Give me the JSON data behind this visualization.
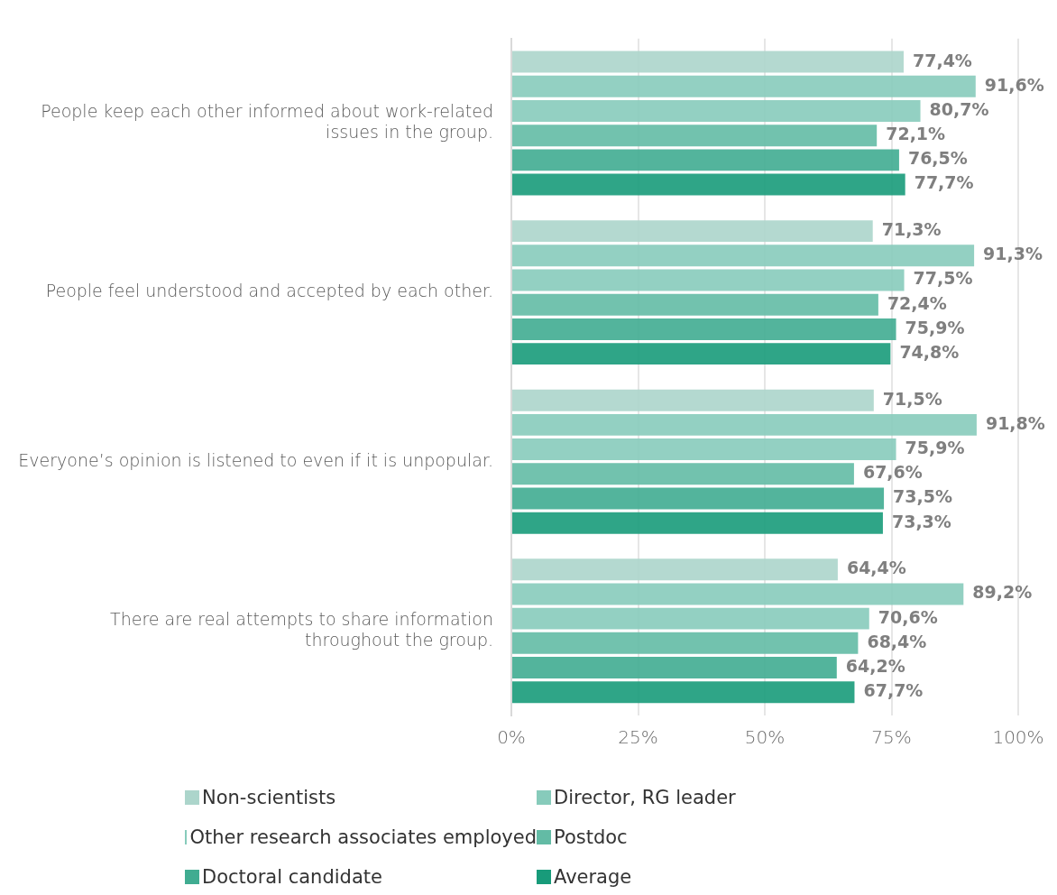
{
  "chart_data": {
    "type": "bar",
    "orientation": "horizontal",
    "categories": [
      "People keep each other informed about work-related issues in the group.",
      "People feel understood and accepted by each other.",
      "Everyone’s opinion is listened to even if it is unpopular.",
      "There are real attempts to share information throughout the group."
    ],
    "series": [
      {
        "name": "Non-scientists",
        "color": "#acd5cb",
        "values": [
          77.4,
          71.3,
          71.5,
          64.4
        ],
        "value_labels": [
          "77,4%",
          "71,3%",
          "71,5%",
          "64,4%"
        ]
      },
      {
        "name": "Director, RG leader",
        "color": "#87cbbb",
        "values": [
          91.6,
          91.3,
          91.8,
          89.2
        ],
        "value_labels": [
          "91,6%",
          "91,3%",
          "91,8%",
          "89,2%"
        ]
      },
      {
        "name": "Other research associates employed",
        "color": "#87cbbb",
        "values": [
          80.7,
          77.5,
          75.9,
          70.6
        ],
        "value_labels": [
          "80,7%",
          "77,5%",
          "75,9%",
          "70,6%"
        ]
      },
      {
        "name": "Postdoc",
        "color": "#63bba5",
        "values": [
          72.1,
          72.4,
          67.6,
          68.4
        ],
        "value_labels": [
          "72,1%",
          "72,4%",
          "67,6%",
          "68,4%"
        ]
      },
      {
        "name": "Doctoral candidate",
        "color": "#40ac91",
        "values": [
          76.5,
          75.9,
          73.5,
          64.2
        ],
        "value_labels": [
          "76,5%",
          "75,9%",
          "73,5%",
          "64,2%"
        ]
      },
      {
        "name": "Average",
        "color": "#189b7a",
        "values": [
          77.7,
          74.8,
          73.3,
          67.7
        ],
        "value_labels": [
          "77,7%",
          "74,8%",
          "73,3%",
          "67,7%"
        ]
      }
    ],
    "xlim": [
      0,
      100
    ],
    "xticks": [
      {
        "value": 0,
        "label": "0%"
      },
      {
        "value": 25,
        "label": "25%"
      },
      {
        "value": 50,
        "label": "50%"
      },
      {
        "value": 75,
        "label": "75%"
      },
      {
        "value": 100,
        "label": "100%"
      }
    ],
    "grid": "x",
    "legend": "bottom"
  }
}
